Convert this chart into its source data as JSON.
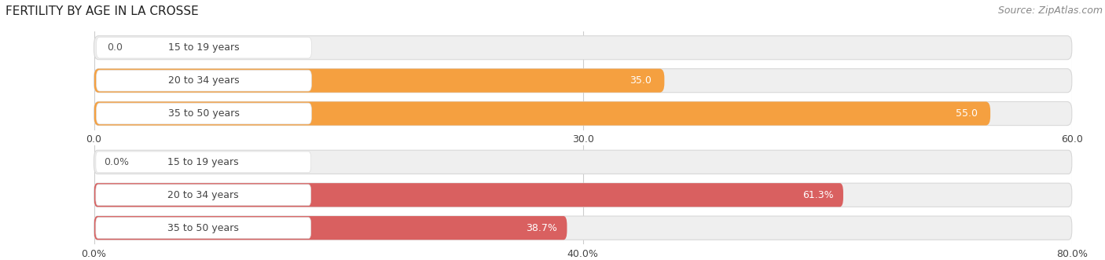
{
  "title": "FERTILITY BY AGE IN LA CROSSE",
  "source": "Source: ZipAtlas.com",
  "top_chart": {
    "categories": [
      "15 to 19 years",
      "20 to 34 years",
      "35 to 50 years"
    ],
    "values": [
      0.0,
      35.0,
      55.0
    ],
    "xlim": [
      0,
      60
    ],
    "xticks": [
      0.0,
      30.0,
      60.0
    ],
    "xtick_labels": [
      "0.0",
      "30.0",
      "60.0"
    ],
    "bar_color": "#F5A040",
    "bg_bar_color": "#EFEFEF",
    "label_bg_color": "#F8F8F8"
  },
  "bottom_chart": {
    "categories": [
      "15 to 19 years",
      "20 to 34 years",
      "35 to 50 years"
    ],
    "values": [
      0.0,
      61.3,
      38.7
    ],
    "xlim": [
      0,
      80
    ],
    "xticks": [
      0.0,
      40.0,
      80.0
    ],
    "xtick_labels": [
      "0.0%",
      "40.0%",
      "80.0%"
    ],
    "bar_color": "#D96060",
    "bg_bar_color": "#EFEFEF",
    "label_bg_color": "#F8F8F8"
  },
  "title_fontsize": 11,
  "source_fontsize": 9,
  "label_fontsize": 9,
  "value_fontsize": 9,
  "tick_fontsize": 9,
  "background_color": "#ffffff",
  "grid_color": "#cccccc",
  "text_color": "#444444",
  "value_color_inside": "#ffffff",
  "value_color_outside": "#555555"
}
